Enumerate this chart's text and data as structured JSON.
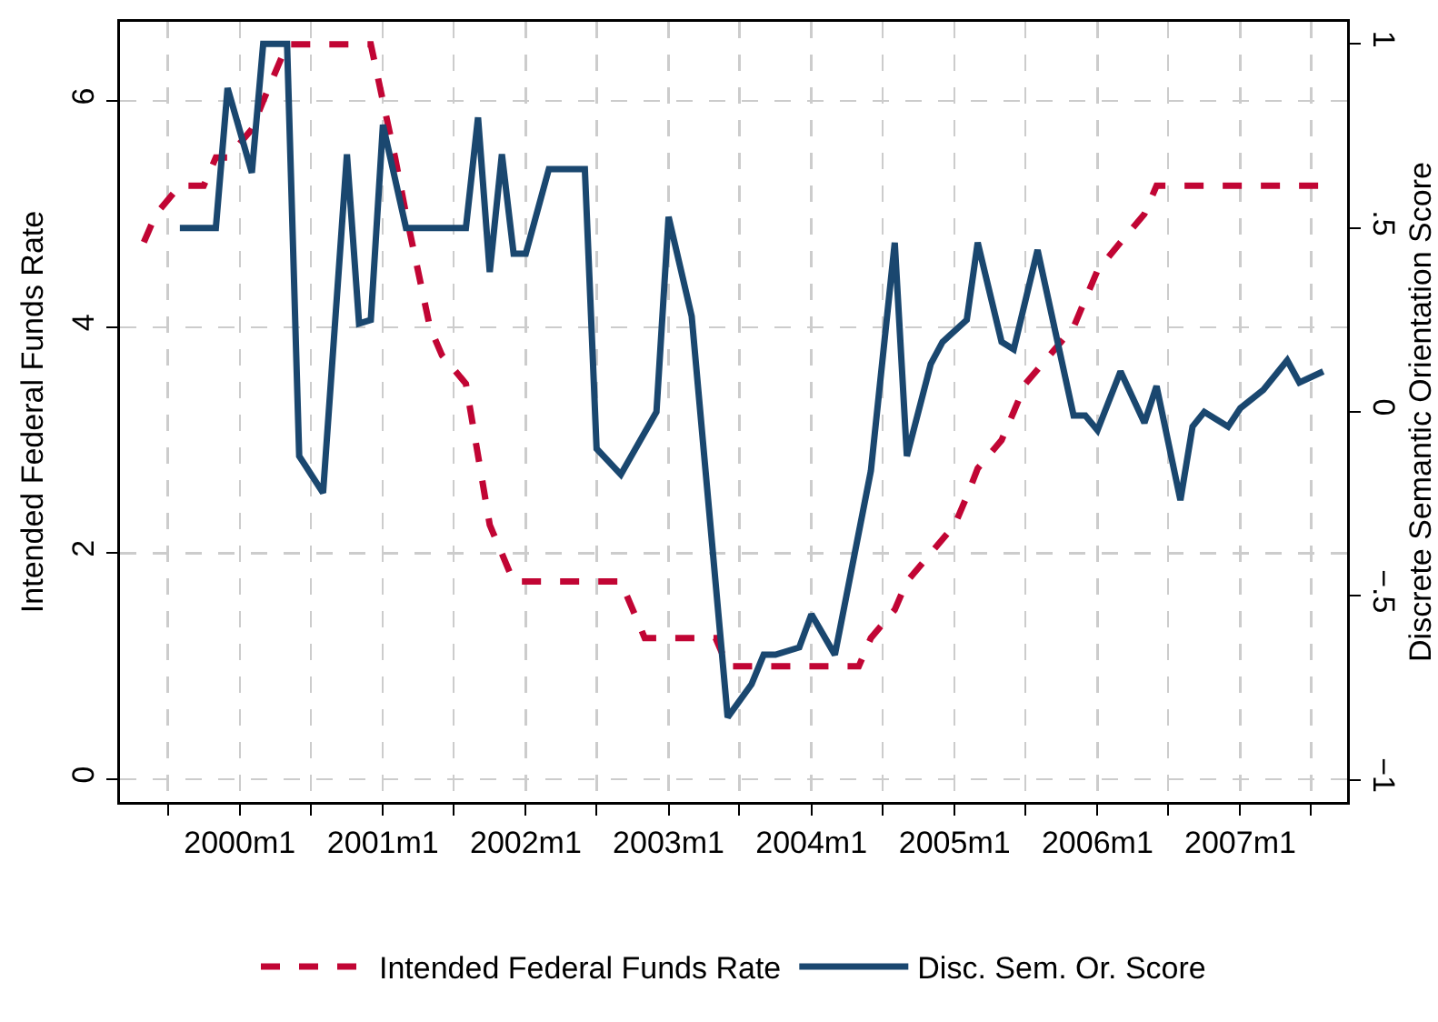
{
  "chart_data": {
    "type": "line",
    "ylabel": "Intended Federal Funds Rate",
    "y2label": "Discrete Semantic Orientation Score",
    "xlim": [
      "1999-03",
      "2007-10"
    ],
    "xticks": [
      {
        "value": "1999-07",
        "label": null
      },
      {
        "value": "2000-01",
        "label": "2000m1"
      },
      {
        "value": "2000-07",
        "label": null
      },
      {
        "value": "2001-01",
        "label": "2001m1"
      },
      {
        "value": "2001-07",
        "label": null
      },
      {
        "value": "2002-01",
        "label": "2002m1"
      },
      {
        "value": "2002-07",
        "label": null
      },
      {
        "value": "2003-01",
        "label": "2003m1"
      },
      {
        "value": "2003-07",
        "label": null
      },
      {
        "value": "2004-01",
        "label": "2004m1"
      },
      {
        "value": "2004-07",
        "label": null
      },
      {
        "value": "2005-01",
        "label": "2005m1"
      },
      {
        "value": "2005-07",
        "label": null
      },
      {
        "value": "2006-01",
        "label": "2006m1"
      },
      {
        "value": "2006-07",
        "label": null
      },
      {
        "value": "2007-01",
        "label": "2007m1"
      },
      {
        "value": "2007-07",
        "label": null
      }
    ],
    "ylim": [
      -0.2,
      6.7
    ],
    "yticks": [
      0,
      2,
      4,
      6
    ],
    "y2lim": [
      -1.06,
      1.06
    ],
    "y2ticks": [
      {
        "value": -1,
        "label": "−1"
      },
      {
        "value": -0.5,
        "label": "−.5"
      },
      0,
      {
        "value": 0.5,
        "label": ".5"
      },
      1
    ],
    "grid": true,
    "legend": "bottom",
    "series": [
      {
        "name": "Intended Federal Funds Rate",
        "color": "#c10534",
        "line_style": "dashed",
        "x": [
          "1999-05",
          "1999-06",
          "1999-08",
          "1999-10",
          "1999-11",
          "1999-12",
          "2000-02",
          "2000-03",
          "2000-05",
          "2000-12",
          "2001-01",
          "2001-02",
          "2001-03",
          "2001-05",
          "2001-06",
          "2001-08",
          "2001-10",
          "2001-12",
          "2002-09",
          "2002-11",
          "2003-05",
          "2003-06",
          "2004-05",
          "2004-06",
          "2004-08",
          "2004-09",
          "2004-11",
          "2005-01",
          "2005-02",
          "2005-03",
          "2005-05",
          "2005-06",
          "2005-07",
          "2005-09",
          "2005-11",
          "2006-01",
          "2006-03",
          "2006-05",
          "2006-06",
          "2007-08"
        ],
        "values": [
          4.75,
          5.0,
          5.25,
          5.25,
          5.5,
          5.5,
          5.75,
          6.0,
          6.5,
          6.5,
          6.0,
          5.5,
          5.0,
          4.0,
          3.75,
          3.5,
          2.25,
          1.75,
          1.75,
          1.25,
          1.25,
          1.0,
          1.0,
          1.25,
          1.5,
          1.75,
          2.0,
          2.25,
          2.5,
          2.75,
          3.0,
          3.25,
          3.5,
          3.75,
          4.0,
          4.5,
          4.75,
          5.0,
          5.25,
          5.25
        ]
      },
      {
        "name": "Disc. Sem. Or. Score",
        "color": "#1a476f",
        "line_style": "solid",
        "axis": "y2",
        "x": [
          "1999-08",
          "1999-11",
          "1999-12",
          "2000-02",
          "2000-03",
          "2000-05",
          "2000-06",
          "2000-08",
          "2000-10",
          "2000-11",
          "2000-12",
          "2001-01",
          "2001-03",
          "2001-08",
          "2001-09",
          "2001-10",
          "2001-11",
          "2001-12",
          "2002-01",
          "2002-03",
          "2002-06",
          "2002-07",
          "2002-09",
          "2002-12",
          "2003-01",
          "2003-03",
          "2003-06",
          "2003-08",
          "2003-09",
          "2003-10",
          "2003-12",
          "2004-01",
          "2004-03",
          "2004-06",
          "2004-08",
          "2004-09",
          "2004-11",
          "2004-12",
          "2005-02",
          "2005-03",
          "2005-05",
          "2005-06",
          "2005-08",
          "2005-11",
          "2005-12",
          "2006-01",
          "2006-03",
          "2006-05",
          "2006-06",
          "2006-08",
          "2006-09",
          "2006-10",
          "2006-12",
          "2007-01",
          "2007-03",
          "2007-05",
          "2007-06",
          "2007-08"
        ],
        "values": [
          0.5,
          0.5,
          0.88,
          0.65,
          1.0,
          1.0,
          -0.12,
          -0.22,
          0.7,
          0.24,
          0.25,
          0.78,
          0.5,
          0.5,
          0.8,
          0.38,
          0.7,
          0.43,
          0.43,
          0.66,
          0.66,
          -0.1,
          -0.17,
          0.0,
          0.53,
          0.26,
          -0.83,
          -0.74,
          -0.66,
          -0.66,
          -0.64,
          -0.55,
          -0.66,
          -0.16,
          0.46,
          -0.12,
          0.13,
          0.19,
          0.25,
          0.46,
          0.19,
          0.17,
          0.44,
          -0.01,
          -0.01,
          -0.05,
          0.11,
          -0.03,
          0.07,
          -0.24,
          -0.04,
          0.0,
          -0.04,
          0.01,
          0.06,
          0.14,
          0.08,
          0.11
        ]
      }
    ]
  }
}
